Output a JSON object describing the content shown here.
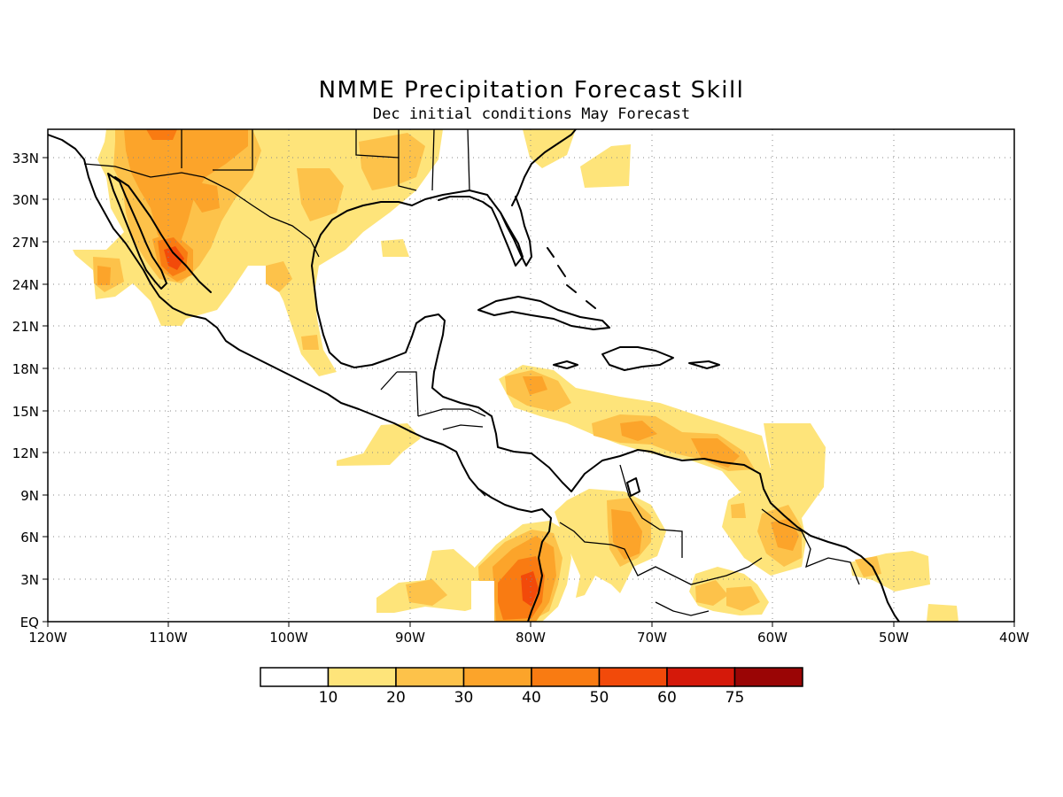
{
  "title": "NMME Precipitation Forecast Skill",
  "subtitle": "Dec initial conditions  May Forecast",
  "lat_labels": [
    "33N",
    "30N",
    "27N",
    "24N",
    "21N",
    "18N",
    "15N",
    "12N",
    "9N",
    "6N",
    "3N",
    "EQ"
  ],
  "lon_labels": [
    "120W",
    "110W",
    "100W",
    "90W",
    "80W",
    "70W",
    "60W",
    "50W",
    "40W"
  ],
  "colorbar": {
    "ticks": [
      "10",
      "20",
      "30",
      "40",
      "50",
      "60",
      "75"
    ],
    "colors": [
      "#ffffff",
      "#fee47a",
      "#fdc24a",
      "#fca42a",
      "#f97b12",
      "#f24a0a",
      "#d5190a",
      "#9a0505"
    ]
  },
  "map_data": {
    "lon_range": [
      -120,
      -40
    ],
    "lat_range": [
      0,
      35
    ],
    "field": "precipitation forecast skill"
  }
}
